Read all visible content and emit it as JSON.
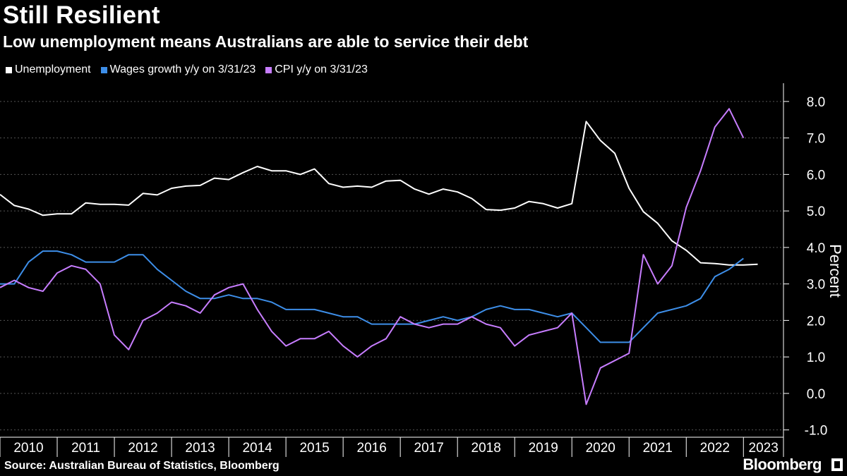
{
  "header": {
    "title": "Still Resilient",
    "subtitle": "Low unemployment means Australians are able to service their debt"
  },
  "footer": {
    "source": "Source: Australian Bureau of Statistics, Bloomberg",
    "brand": "Bloomberg"
  },
  "chart_data": {
    "type": "line",
    "title": "Still Resilient",
    "subtitle": "Low unemployment means Australians are able to service their debt",
    "xlabel": "",
    "ylabel": "Percent",
    "ylim": [
      -1.2,
      8.5
    ],
    "xlim": [
      2010.0,
      2023.7
    ],
    "yticks": [
      -1.0,
      0.0,
      1.0,
      2.0,
      3.0,
      4.0,
      5.0,
      6.0,
      7.0,
      8.0
    ],
    "ytick_labels": [
      "-1.0",
      "0.0",
      "1.0",
      "2.0",
      "3.0",
      "4.0",
      "5.0",
      "6.0",
      "7.0",
      "8.0"
    ],
    "xticks": [
      2010,
      2011,
      2012,
      2013,
      2014,
      2015,
      2016,
      2017,
      2018,
      2019,
      2020,
      2021,
      2022,
      2023
    ],
    "xtick_labels": [
      "2010",
      "2011",
      "2012",
      "2013",
      "2014",
      "2015",
      "2016",
      "2017",
      "2018",
      "2019",
      "2020",
      "2021",
      "2022",
      "2023"
    ],
    "grid": true,
    "legend_position": "top-left",
    "series": [
      {
        "name": "Unemployment",
        "color": "#ffffff",
        "x": [
          2010.0,
          2010.25,
          2010.5,
          2010.75,
          2011.0,
          2011.25,
          2011.5,
          2011.75,
          2012.0,
          2012.25,
          2012.5,
          2012.75,
          2013.0,
          2013.25,
          2013.5,
          2013.75,
          2014.0,
          2014.25,
          2014.5,
          2014.75,
          2015.0,
          2015.25,
          2015.5,
          2015.75,
          2016.0,
          2016.25,
          2016.5,
          2016.75,
          2017.0,
          2017.25,
          2017.5,
          2017.75,
          2018.0,
          2018.25,
          2018.5,
          2018.75,
          2019.0,
          2019.25,
          2019.5,
          2019.75,
          2020.0,
          2020.25,
          2020.5,
          2020.75,
          2021.0,
          2021.25,
          2021.5,
          2021.75,
          2022.0,
          2022.25,
          2022.5,
          2022.75,
          2023.0,
          2023.25
        ],
        "values": [
          5.45,
          5.15,
          5.05,
          4.88,
          4.92,
          4.92,
          5.22,
          5.18,
          5.18,
          5.16,
          5.48,
          5.44,
          5.62,
          5.68,
          5.7,
          5.9,
          5.86,
          6.05,
          6.22,
          6.1,
          6.1,
          6.0,
          6.15,
          5.75,
          5.65,
          5.68,
          5.65,
          5.82,
          5.84,
          5.6,
          5.46,
          5.6,
          5.52,
          5.34,
          5.04,
          5.02,
          5.08,
          5.26,
          5.2,
          5.08,
          5.2,
          7.45,
          6.93,
          6.58,
          5.62,
          4.98,
          4.66,
          4.18,
          3.92,
          3.58,
          3.56,
          3.52,
          3.52,
          3.54
        ]
      },
      {
        "name": "Wages growth y/y on 3/31/23",
        "color": "#3d8ee8",
        "x": [
          2010.0,
          2010.25,
          2010.5,
          2010.75,
          2011.0,
          2011.25,
          2011.5,
          2011.75,
          2012.0,
          2012.25,
          2012.5,
          2012.75,
          2013.0,
          2013.25,
          2013.5,
          2013.75,
          2014.0,
          2014.25,
          2014.5,
          2014.75,
          2015.0,
          2015.25,
          2015.5,
          2015.75,
          2016.0,
          2016.25,
          2016.5,
          2016.75,
          2017.0,
          2017.25,
          2017.5,
          2017.75,
          2018.0,
          2018.25,
          2018.5,
          2018.75,
          2019.0,
          2019.25,
          2019.5,
          2019.75,
          2020.0,
          2020.25,
          2020.5,
          2020.75,
          2021.0,
          2021.25,
          2021.5,
          2021.75,
          2022.0,
          2022.25,
          2022.5,
          2022.75,
          2023.0
        ],
        "values": [
          3.0,
          3.0,
          3.6,
          3.9,
          3.9,
          3.8,
          3.6,
          3.6,
          3.6,
          3.8,
          3.8,
          3.4,
          3.1,
          2.8,
          2.6,
          2.6,
          2.7,
          2.6,
          2.6,
          2.5,
          2.3,
          2.3,
          2.3,
          2.2,
          2.1,
          2.1,
          1.9,
          1.9,
          1.9,
          1.9,
          2.0,
          2.1,
          2.0,
          2.1,
          2.3,
          2.4,
          2.3,
          2.3,
          2.2,
          2.1,
          2.2,
          1.8,
          1.4,
          1.4,
          1.4,
          1.8,
          2.2,
          2.3,
          2.4,
          2.6,
          3.2,
          3.4,
          3.7
        ]
      },
      {
        "name": "CPI y/y on 3/31/23",
        "color": "#c77dff",
        "x": [
          2010.0,
          2010.25,
          2010.5,
          2010.75,
          2011.0,
          2011.25,
          2011.5,
          2011.75,
          2012.0,
          2012.25,
          2012.5,
          2012.75,
          2013.0,
          2013.25,
          2013.5,
          2013.75,
          2014.0,
          2014.25,
          2014.5,
          2014.75,
          2015.0,
          2015.25,
          2015.5,
          2015.75,
          2016.0,
          2016.25,
          2016.5,
          2016.75,
          2017.0,
          2017.25,
          2017.5,
          2017.75,
          2018.0,
          2018.25,
          2018.5,
          2018.75,
          2019.0,
          2019.25,
          2019.5,
          2019.75,
          2020.0,
          2020.25,
          2020.5,
          2020.75,
          2021.0,
          2021.25,
          2021.5,
          2021.75,
          2022.0,
          2022.25,
          2022.5,
          2022.75,
          2023.0
        ],
        "values": [
          2.9,
          3.1,
          2.9,
          2.8,
          3.3,
          3.5,
          3.4,
          3.0,
          1.6,
          1.2,
          2.0,
          2.2,
          2.5,
          2.4,
          2.2,
          2.7,
          2.9,
          3.0,
          2.3,
          1.7,
          1.3,
          1.5,
          1.5,
          1.7,
          1.3,
          1.0,
          1.3,
          1.5,
          2.1,
          1.9,
          1.8,
          1.9,
          1.9,
          2.1,
          1.9,
          1.8,
          1.3,
          1.6,
          1.7,
          1.8,
          2.2,
          -0.3,
          0.7,
          0.9,
          1.1,
          3.8,
          3.0,
          3.5,
          5.1,
          6.1,
          7.3,
          7.8,
          7.0
        ]
      }
    ]
  }
}
